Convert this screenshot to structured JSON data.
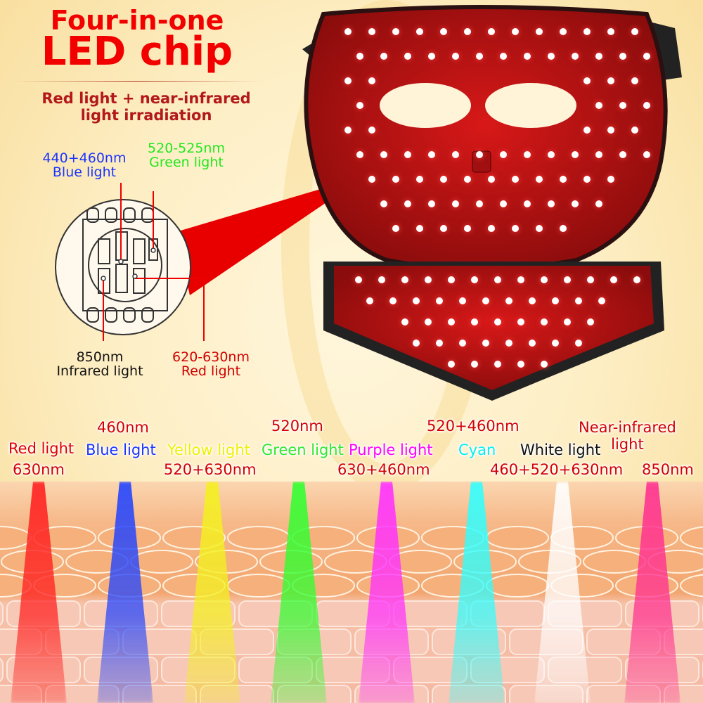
{
  "header": {
    "title_line1": "Four-in-one",
    "title_line2": "LED chip",
    "subtitle_line1": "Red light + near-infrared",
    "subtitle_line2": "light irradiation"
  },
  "chip": {
    "blue": {
      "wavelength": "440+460nm",
      "name": "Blue light"
    },
    "green": {
      "wavelength": "520-525nm",
      "name": "Green light"
    },
    "infrared": {
      "wavelength": "850nm",
      "name": "Infrared light"
    },
    "red": {
      "wavelength": "620-630nm",
      "name": "Red light"
    }
  },
  "modes": [
    {
      "name": "Red light",
      "wavelength": "630nm",
      "color": "#ff2020"
    },
    {
      "name": "Blue light",
      "wavelength": "460nm",
      "color": "#2244ff"
    },
    {
      "name": "Yellow light",
      "wavelength": "520+630nm",
      "color": "#f4f020"
    },
    {
      "name": "Green light",
      "wavelength": "520nm",
      "color": "#30ff30"
    },
    {
      "name": "Purple light",
      "wavelength": "630+460nm",
      "color": "#ff30ff"
    },
    {
      "name": "Cyan",
      "wavelength": "520+460nm",
      "color": "#30ffff"
    },
    {
      "name": "White light",
      "wavelength": "460+520+630nm",
      "color": "#ffffff"
    },
    {
      "name": "Near-infrared light",
      "name_line1": "Near-infrared",
      "name_line2": "light",
      "wavelength": "850nm",
      "color": "#ff3090"
    }
  ],
  "label_colors": {
    "wavelength": "#d20000",
    "red": "#e00000",
    "blue": "#1a34ff",
    "yellow": "#f0f000",
    "green": "#30e830",
    "purple": "#ff00ff",
    "cyan": "#00f0f0",
    "white": "#111111",
    "nir": "#d20000"
  }
}
